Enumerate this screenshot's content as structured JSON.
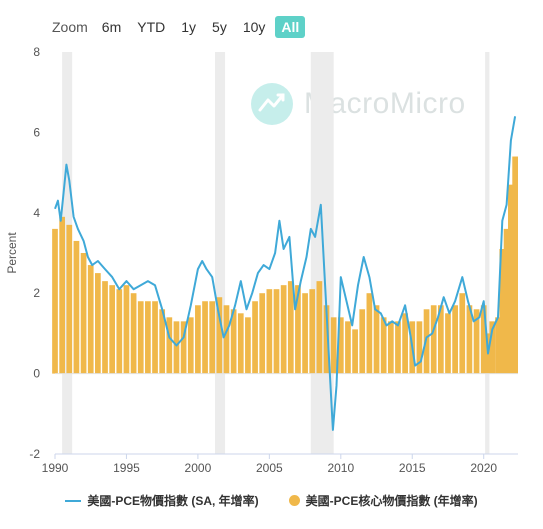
{
  "toolbar": {
    "zoom_label": "Zoom",
    "buttons": [
      "6m",
      "YTD",
      "1y",
      "5y",
      "10y",
      "All"
    ],
    "active": "All",
    "active_color": "#5ed1c8"
  },
  "watermark": {
    "text": "MacroMicro"
  },
  "chart_data": {
    "type": "line+bar",
    "ylabel": "Percent",
    "xlabel": "",
    "ylim": [
      -2,
      8
    ],
    "xlim": [
      1990.0,
      2022.4
    ],
    "y_ticks": [
      -2,
      0,
      2,
      4,
      6,
      8
    ],
    "x_ticks": [
      1990,
      1995,
      2000,
      2005,
      2010,
      2015,
      2020
    ],
    "grid": false,
    "legend_position": "bottom",
    "recession_bands": [
      [
        1990.5,
        1991.2
      ],
      [
        2001.2,
        2001.9
      ],
      [
        2007.9,
        2009.5
      ],
      [
        2020.1,
        2020.4
      ]
    ],
    "series": [
      {
        "name": "美國-PCE物價指數 (SA, 年增率)",
        "type": "line",
        "color": "#3fa9d8",
        "points": [
          [
            1990.0,
            4.1
          ],
          [
            1990.2,
            4.3
          ],
          [
            1990.4,
            3.8
          ],
          [
            1990.6,
            4.5
          ],
          [
            1990.8,
            5.2
          ],
          [
            1991.0,
            4.8
          ],
          [
            1991.3,
            3.9
          ],
          [
            1991.6,
            3.6
          ],
          [
            1992.0,
            3.3
          ],
          [
            1992.3,
            2.9
          ],
          [
            1992.6,
            2.7
          ],
          [
            1993.0,
            2.8
          ],
          [
            1993.5,
            2.6
          ],
          [
            1994.0,
            2.4
          ],
          [
            1994.5,
            2.1
          ],
          [
            1995.0,
            2.3
          ],
          [
            1995.5,
            2.1
          ],
          [
            1996.0,
            2.2
          ],
          [
            1996.5,
            2.3
          ],
          [
            1997.0,
            2.2
          ],
          [
            1997.5,
            1.6
          ],
          [
            1998.0,
            0.9
          ],
          [
            1998.5,
            0.7
          ],
          [
            1999.0,
            0.9
          ],
          [
            1999.5,
            1.7
          ],
          [
            2000.0,
            2.6
          ],
          [
            2000.3,
            2.8
          ],
          [
            2000.6,
            2.6
          ],
          [
            2001.0,
            2.4
          ],
          [
            2001.4,
            1.6
          ],
          [
            2001.8,
            0.9
          ],
          [
            2002.2,
            1.2
          ],
          [
            2002.6,
            1.7
          ],
          [
            2003.0,
            2.3
          ],
          [
            2003.4,
            1.6
          ],
          [
            2003.8,
            2.0
          ],
          [
            2004.2,
            2.5
          ],
          [
            2004.6,
            2.7
          ],
          [
            2005.0,
            2.6
          ],
          [
            2005.4,
            3.0
          ],
          [
            2005.7,
            3.8
          ],
          [
            2006.0,
            3.1
          ],
          [
            2006.4,
            3.4
          ],
          [
            2006.8,
            1.6
          ],
          [
            2007.2,
            2.3
          ],
          [
            2007.6,
            2.9
          ],
          [
            2007.9,
            3.6
          ],
          [
            2008.2,
            3.4
          ],
          [
            2008.6,
            4.2
          ],
          [
            2008.9,
            2.2
          ],
          [
            2009.2,
            0.2
          ],
          [
            2009.45,
            -1.4
          ],
          [
            2009.7,
            -0.3
          ],
          [
            2010.0,
            2.4
          ],
          [
            2010.4,
            1.8
          ],
          [
            2010.8,
            1.2
          ],
          [
            2011.2,
            2.2
          ],
          [
            2011.6,
            2.9
          ],
          [
            2012.0,
            2.4
          ],
          [
            2012.4,
            1.6
          ],
          [
            2012.8,
            1.5
          ],
          [
            2013.2,
            1.2
          ],
          [
            2013.6,
            1.3
          ],
          [
            2014.0,
            1.2
          ],
          [
            2014.5,
            1.7
          ],
          [
            2014.9,
            0.9
          ],
          [
            2015.2,
            0.2
          ],
          [
            2015.6,
            0.3
          ],
          [
            2016.0,
            0.9
          ],
          [
            2016.4,
            1.0
          ],
          [
            2016.8,
            1.4
          ],
          [
            2017.2,
            1.9
          ],
          [
            2017.6,
            1.5
          ],
          [
            2018.0,
            1.8
          ],
          [
            2018.5,
            2.4
          ],
          [
            2018.9,
            1.8
          ],
          [
            2019.3,
            1.3
          ],
          [
            2019.7,
            1.4
          ],
          [
            2020.0,
            1.8
          ],
          [
            2020.3,
            0.5
          ],
          [
            2020.6,
            1.1
          ],
          [
            2021.0,
            1.4
          ],
          [
            2021.3,
            3.8
          ],
          [
            2021.6,
            4.2
          ],
          [
            2021.9,
            5.8
          ],
          [
            2022.2,
            6.4
          ]
        ]
      },
      {
        "name": "美國-PCE核心物價指數 (年增率)",
        "type": "column",
        "color": "#f0b84a",
        "points": [
          [
            1990.0,
            3.6
          ],
          [
            1990.5,
            3.9
          ],
          [
            1991.0,
            3.7
          ],
          [
            1991.5,
            3.3
          ],
          [
            1992.0,
            3.0
          ],
          [
            1992.5,
            2.7
          ],
          [
            1993.0,
            2.5
          ],
          [
            1993.5,
            2.3
          ],
          [
            1994.0,
            2.2
          ],
          [
            1994.5,
            2.1
          ],
          [
            1995.0,
            2.2
          ],
          [
            1995.5,
            2.0
          ],
          [
            1996.0,
            1.8
          ],
          [
            1996.5,
            1.8
          ],
          [
            1997.0,
            1.8
          ],
          [
            1997.5,
            1.6
          ],
          [
            1998.0,
            1.4
          ],
          [
            1998.5,
            1.3
          ],
          [
            1999.0,
            1.3
          ],
          [
            1999.5,
            1.4
          ],
          [
            2000.0,
            1.7
          ],
          [
            2000.5,
            1.8
          ],
          [
            2001.0,
            1.8
          ],
          [
            2001.5,
            1.9
          ],
          [
            2002.0,
            1.7
          ],
          [
            2002.5,
            1.6
          ],
          [
            2003.0,
            1.5
          ],
          [
            2003.5,
            1.4
          ],
          [
            2004.0,
            1.8
          ],
          [
            2004.5,
            2.0
          ],
          [
            2005.0,
            2.1
          ],
          [
            2005.5,
            2.1
          ],
          [
            2006.0,
            2.2
          ],
          [
            2006.5,
            2.3
          ],
          [
            2007.0,
            2.2
          ],
          [
            2007.5,
            2.0
          ],
          [
            2008.0,
            2.1
          ],
          [
            2008.5,
            2.3
          ],
          [
            2009.0,
            1.7
          ],
          [
            2009.5,
            1.4
          ],
          [
            2010.0,
            1.4
          ],
          [
            2010.5,
            1.3
          ],
          [
            2011.0,
            1.1
          ],
          [
            2011.5,
            1.6
          ],
          [
            2012.0,
            2.0
          ],
          [
            2012.5,
            1.7
          ],
          [
            2013.0,
            1.4
          ],
          [
            2013.5,
            1.3
          ],
          [
            2014.0,
            1.3
          ],
          [
            2014.5,
            1.5
          ],
          [
            2015.0,
            1.3
          ],
          [
            2015.5,
            1.3
          ],
          [
            2016.0,
            1.6
          ],
          [
            2016.5,
            1.7
          ],
          [
            2017.0,
            1.7
          ],
          [
            2017.5,
            1.5
          ],
          [
            2018.0,
            1.7
          ],
          [
            2018.5,
            2.0
          ],
          [
            2019.0,
            1.7
          ],
          [
            2019.5,
            1.6
          ],
          [
            2020.0,
            1.7
          ],
          [
            2020.3,
            1.0
          ],
          [
            2020.6,
            1.3
          ],
          [
            2021.0,
            1.4
          ],
          [
            2021.3,
            3.1
          ],
          [
            2021.6,
            3.6
          ],
          [
            2021.9,
            4.7
          ],
          [
            2022.2,
            5.4
          ]
        ]
      }
    ]
  }
}
